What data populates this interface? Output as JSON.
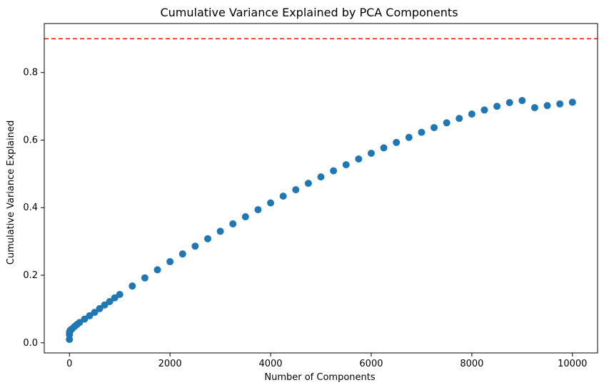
{
  "chart_data": {
    "type": "scatter",
    "title": "Cumulative Variance Explained by PCA Components",
    "xlabel": "Number of Components",
    "ylabel": "Cumulative Variance Explained",
    "xlim": [
      -500,
      10500
    ],
    "ylim": [
      -0.03,
      0.945
    ],
    "xticks": [
      0,
      2000,
      4000,
      6000,
      8000,
      10000
    ],
    "yticks": [
      0.0,
      0.2,
      0.4,
      0.6,
      0.8
    ],
    "grid": false,
    "marker_color": "#1f77b4",
    "threshold_line": {
      "y": 0.9,
      "color": "#ff0000",
      "style": "dashed"
    },
    "series": [
      {
        "x": [
          0,
          1,
          2,
          5,
          10,
          25,
          50,
          100,
          150,
          200,
          300,
          400,
          500,
          600,
          700,
          800,
          900,
          1000,
          1250,
          1500,
          1750,
          2000,
          2250,
          2500,
          2750,
          3000,
          3250,
          3500,
          3750,
          4000,
          4250,
          4500,
          4750,
          5000,
          5250,
          5500,
          5750,
          6000,
          6250,
          6500,
          6750,
          7000,
          7250,
          7500,
          7750,
          8000,
          8250,
          8500,
          8750,
          9000,
          9250,
          9500,
          9750,
          10000
        ],
        "values": [
          0.01,
          0.024,
          0.031,
          0.033,
          0.035,
          0.038,
          0.041,
          0.048,
          0.054,
          0.06,
          0.07,
          0.08,
          0.09,
          0.101,
          0.112,
          0.122,
          0.133,
          0.143,
          0.168,
          0.192,
          0.216,
          0.24,
          0.263,
          0.286,
          0.308,
          0.33,
          0.352,
          0.373,
          0.394,
          0.414,
          0.434,
          0.453,
          0.472,
          0.491,
          0.509,
          0.527,
          0.544,
          0.561,
          0.577,
          0.593,
          0.608,
          0.623,
          0.637,
          0.651,
          0.664,
          0.677,
          0.689,
          0.7,
          0.711,
          0.717,
          0.696,
          0.702,
          0.707,
          0.712
        ]
      }
    ]
  }
}
